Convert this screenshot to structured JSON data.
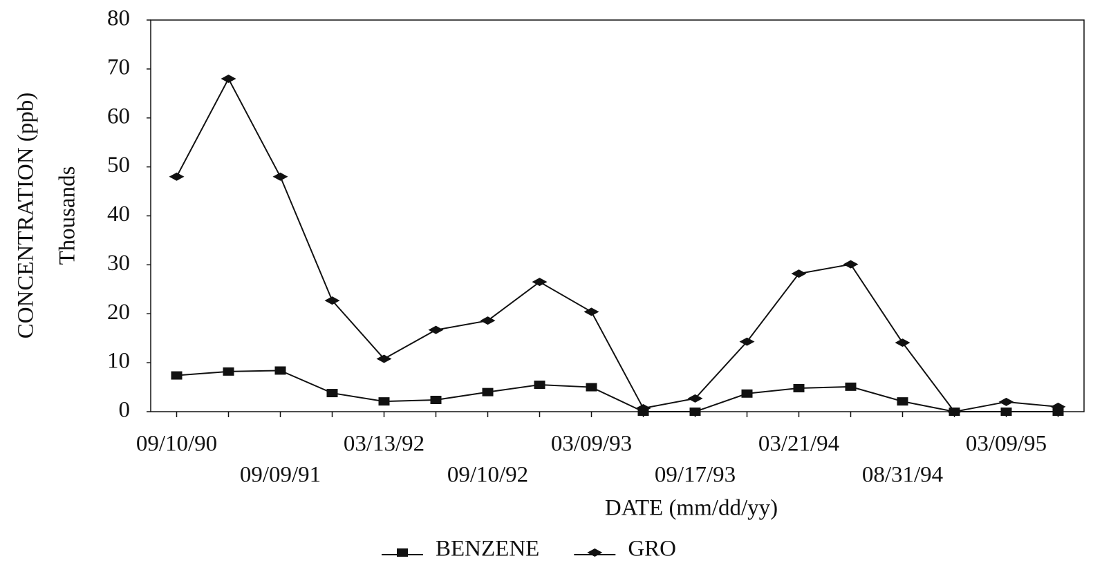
{
  "chart_data": {
    "type": "line",
    "x_label": "DATE (mm/dd/yy)",
    "y_label": "CONCENTRATION (ppb)",
    "y_unit_label": "Thousands",
    "categories": [
      "09/10/90",
      null,
      "09/09/91",
      null,
      "03/13/92",
      null,
      "09/10/92",
      null,
      "03/09/93",
      null,
      "09/17/93",
      null,
      "03/21/94",
      null,
      "08/31/94",
      null,
      "03/09/95",
      null
    ],
    "series": [
      {
        "name": "BENZENE",
        "color": "#111111",
        "marker": "square",
        "values": [
          7.4,
          8.2,
          8.4,
          3.8,
          2.1,
          2.4,
          4,
          5.5,
          5,
          0,
          0,
          3.7,
          4.8,
          5.1,
          2.1,
          0,
          0,
          0
        ]
      },
      {
        "name": "GRO",
        "color": "#111111",
        "marker": "diamond",
        "values": [
          48,
          68,
          48,
          22.7,
          10.8,
          16.7,
          18.6,
          26.5,
          20.4,
          0.7,
          2.7,
          14.3,
          28.2,
          30.1,
          14.1,
          0,
          2,
          1
        ]
      }
    ],
    "ylim": [
      0,
      80
    ],
    "yticks": [
      0,
      10,
      20,
      30,
      40,
      50,
      60,
      70,
      80
    ],
    "legend": "bottom"
  }
}
